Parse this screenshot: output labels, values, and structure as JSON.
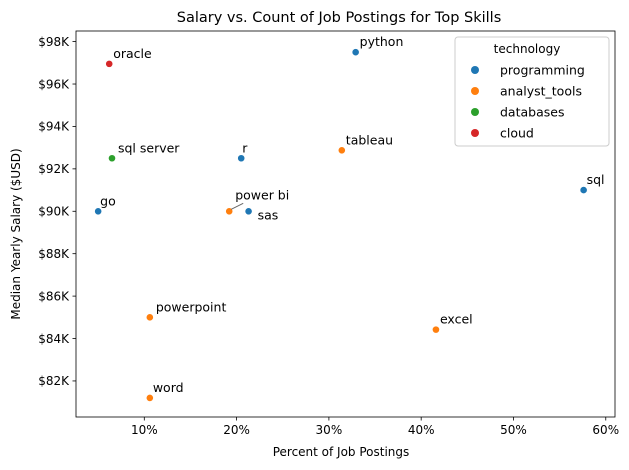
{
  "chart_data": {
    "type": "scatter",
    "title": "Salary vs. Count of Job Postings for Top Skills",
    "xlabel": "Percent of Job Postings",
    "ylabel": "Median Yearly Salary ($USD)",
    "xlim": [
      2.6,
      61.0
    ],
    "ylim": [
      80300,
      98500
    ],
    "xticks": [
      10,
      20,
      30,
      40,
      50,
      60
    ],
    "xtick_labels": [
      "10%",
      "20%",
      "30%",
      "40%",
      "50%",
      "60%"
    ],
    "yticks": [
      82000,
      84000,
      86000,
      88000,
      90000,
      92000,
      94000,
      96000,
      98000
    ],
    "ytick_labels": [
      "$82K",
      "$84K",
      "$86K",
      "$88K",
      "$90K",
      "$92K",
      "$94K",
      "$96K",
      "$98K"
    ],
    "grid": false,
    "legend": {
      "title": "technology",
      "placement": "top-right",
      "entries": [
        {
          "name": "programming",
          "color": "#1f77b4"
        },
        {
          "name": "analyst_tools",
          "color": "#ff7f0e"
        },
        {
          "name": "databases",
          "color": "#2ca02c"
        },
        {
          "name": "cloud",
          "color": "#d62728"
        }
      ]
    },
    "points": [
      {
        "label": "python",
        "x": 32.9,
        "y": 97500,
        "group": "programming"
      },
      {
        "label": "oracle",
        "x": 6.2,
        "y": 96950,
        "group": "cloud"
      },
      {
        "label": "tableau",
        "x": 31.4,
        "y": 92875,
        "group": "analyst_tools"
      },
      {
        "label": "sql server",
        "x": 6.5,
        "y": 92500,
        "group": "databases"
      },
      {
        "label": "r",
        "x": 20.5,
        "y": 92500,
        "group": "programming"
      },
      {
        "label": "sql",
        "x": 57.6,
        "y": 91000,
        "group": "programming"
      },
      {
        "label": "go",
        "x": 5.0,
        "y": 90000,
        "group": "programming"
      },
      {
        "label": "power bi",
        "x": 19.2,
        "y": 90000,
        "group": "analyst_tools"
      },
      {
        "label": "sas",
        "x": 21.3,
        "y": 90000,
        "group": "programming"
      },
      {
        "label": "powerpoint",
        "x": 10.6,
        "y": 85000,
        "group": "analyst_tools"
      },
      {
        "label": "excel",
        "x": 41.6,
        "y": 84420,
        "group": "analyst_tools"
      },
      {
        "label": "word",
        "x": 10.6,
        "y": 81200,
        "group": "analyst_tools"
      }
    ]
  }
}
